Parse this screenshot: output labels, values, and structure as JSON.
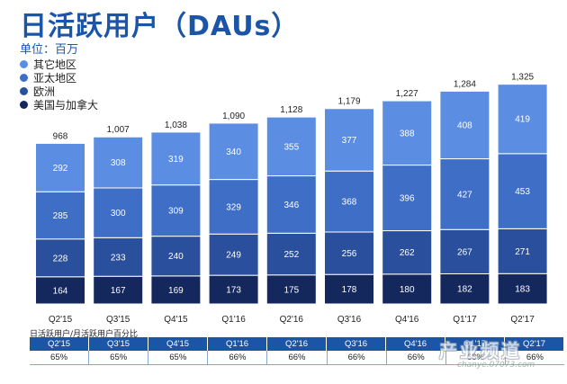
{
  "header": {
    "title": "日活跃用户（DAUs）",
    "subtitle": "单位：百万"
  },
  "legend": [
    {
      "label": "其它地区",
      "color": "#5b8ee3"
    },
    {
      "label": "亚太地区",
      "color": "#3f6ec6"
    },
    {
      "label": "欧洲",
      "color": "#2a4f9c"
    },
    {
      "label": "美国与加拿大",
      "color": "#14285e"
    }
  ],
  "chart_data": {
    "type": "bar",
    "stacked": true,
    "categories": [
      "Q2'15",
      "Q3'15",
      "Q4'15",
      "Q1'16",
      "Q2'16",
      "Q3'16",
      "Q4'16",
      "Q1'17",
      "Q2'17"
    ],
    "series": [
      {
        "name": "美国与加拿大",
        "values": [
          164,
          167,
          169,
          173,
          175,
          178,
          180,
          182,
          183
        ],
        "color": "#14285e"
      },
      {
        "name": "欧洲",
        "values": [
          228,
          233,
          240,
          249,
          252,
          256,
          262,
          267,
          271
        ],
        "color": "#2a4f9c"
      },
      {
        "name": "亚太地区",
        "values": [
          285,
          300,
          309,
          329,
          346,
          368,
          396,
          427,
          453
        ],
        "color": "#3f6ec6"
      },
      {
        "name": "其它地区",
        "values": [
          292,
          308,
          319,
          340,
          355,
          377,
          388,
          408,
          419
        ],
        "color": "#5b8ee3"
      }
    ],
    "totals": [
      "968",
      "1,007",
      "1,038",
      "1,090",
      "1,128",
      "1,179",
      "1,227",
      "1,284",
      "1,325"
    ],
    "title": "日活跃用户（DAUs）",
    "ylabel": "单位：百万",
    "ylim": [
      0,
      1400
    ]
  },
  "table": {
    "caption": "日活跃用户/月活跃用户百分比",
    "headers": [
      "Q2'15",
      "Q3'15",
      "Q4'15",
      "Q1'16",
      "Q2'16",
      "Q3'16",
      "Q4'16",
      "Q1'17",
      "Q2'17"
    ],
    "values": [
      "65%",
      "65%",
      "65%",
      "66%",
      "66%",
      "66%",
      "66%",
      "66%",
      "66%"
    ]
  },
  "watermark": {
    "mark": "产业频道",
    "url": "chanye.07073.com"
  }
}
